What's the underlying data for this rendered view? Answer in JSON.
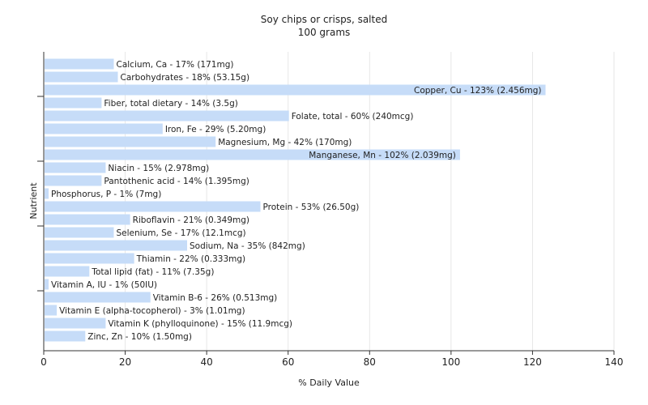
{
  "chart_data": {
    "type": "bar",
    "orientation": "horizontal",
    "title": "Soy chips or crisps, salted",
    "subtitle": "100 grams",
    "xlabel": "% Daily Value",
    "ylabel": "Nutrient",
    "xlim": [
      0,
      140
    ],
    "xticks": [
      0,
      20,
      40,
      60,
      80,
      100,
      120,
      140
    ],
    "grid": "vertical",
    "bar_color": "#c6dcf8",
    "categories": [
      "Calcium, Ca",
      "Carbohydrates",
      "Copper, Cu",
      "Fiber, total dietary",
      "Folate, total",
      "Iron, Fe",
      "Magnesium, Mg",
      "Manganese, Mn",
      "Niacin",
      "Pantothenic acid",
      "Phosphorus, P",
      "Protein",
      "Riboflavin",
      "Selenium, Se",
      "Sodium, Na",
      "Thiamin",
      "Total lipid (fat)",
      "Vitamin A, IU",
      "Vitamin B-6",
      "Vitamin E (alpha-tocopherol)",
      "Vitamin K (phylloquinone)",
      "Zinc, Zn"
    ],
    "values": [
      17,
      18,
      123,
      14,
      60,
      29,
      42,
      102,
      15,
      14,
      1,
      53,
      21,
      17,
      35,
      22,
      11,
      1,
      26,
      3,
      15,
      10
    ],
    "labels": [
      "Calcium, Ca - 17% (171mg)",
      "Carbohydrates - 18% (53.15g)",
      "Copper, Cu - 123% (2.456mg)",
      "Fiber, total dietary - 14% (3.5g)",
      "Folate, total - 60% (240mcg)",
      "Iron, Fe - 29% (5.20mg)",
      "Magnesium, Mg - 42% (170mg)",
      "Manganese, Mn - 102% (2.039mg)",
      "Niacin - 15% (2.978mg)",
      "Pantothenic acid - 14% (1.395mg)",
      "Phosphorus, P - 1% (7mg)",
      "Protein - 53% (26.50g)",
      "Riboflavin - 21% (0.349mg)",
      "Selenium, Se - 17% (12.1mcg)",
      "Sodium, Na - 35% (842mg)",
      "Thiamin - 22% (0.333mg)",
      "Total lipid (fat) - 11% (7.35g)",
      "Vitamin A, IU - 1% (50IU)",
      "Vitamin B-6 - 26% (0.513mg)",
      "Vitamin E (alpha-tocopherol) - 3% (1.01mg)",
      "Vitamin K (phylloquinone) - 15% (11.9mcg)",
      "Zinc, Zn - 10% (1.50mg)"
    ]
  }
}
